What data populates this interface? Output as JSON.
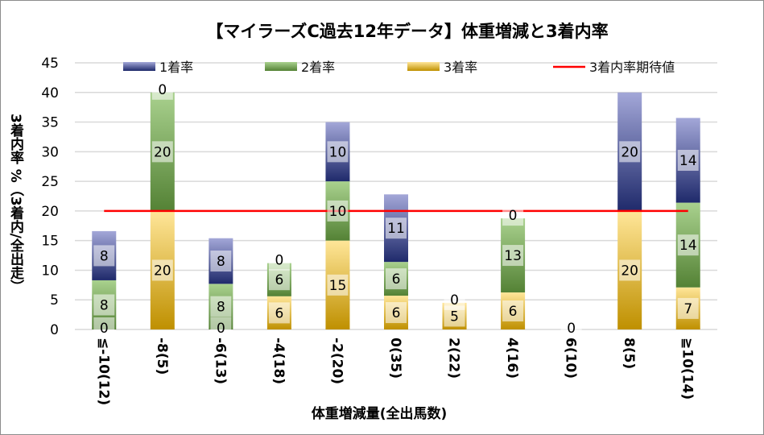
{
  "chart_data": {
    "type": "bar",
    "stacked": true,
    "title": "【マイラーズC過去12年データ】体重増減と3着内率",
    "xlabel": "体重増減量(全出馬数)",
    "ylabel": "3着内率 %（3着内/全出走）",
    "ylim": [
      0,
      45
    ],
    "yticks": [
      0,
      5,
      10,
      15,
      20,
      25,
      30,
      35,
      40,
      45
    ],
    "grid": true,
    "legend_position": "top",
    "categories": [
      "≦-10(12)",
      "-8(5)",
      "-6(13)",
      "-4(18)",
      "-2(20)",
      "0(35)",
      "2(22)",
      "4(16)",
      "6(10)",
      "8(5)",
      "≧10(14)"
    ],
    "series": [
      {
        "name": "3着率",
        "color": "#bf9000",
        "light": "#ffe699",
        "values": [
          0,
          20,
          0,
          5.6,
          15,
          5.7,
          4.5,
          6.25,
          0,
          20,
          7.1
        ],
        "labels": [
          "0",
          "20",
          "0",
          "6",
          "15",
          "6",
          "5",
          "6",
          "0",
          "20",
          "7"
        ]
      },
      {
        "name": "2着率",
        "color": "#548235",
        "light": "#a9d18e",
        "values": [
          8.3,
          20,
          7.7,
          5.6,
          10,
          5.7,
          0,
          12.5,
          0,
          0,
          14.3
        ],
        "labels": [
          "8",
          "20",
          "8",
          "6",
          "10",
          "6",
          "0",
          "13",
          "0",
          "0",
          "14"
        ]
      },
      {
        "name": "1着率",
        "color": "#1f2a6b",
        "light": "#a3a7d8",
        "values": [
          8.3,
          0,
          7.7,
          0,
          10,
          11.4,
          0,
          0,
          0,
          20,
          14.3
        ],
        "labels": [
          "8",
          "0",
          "8",
          "0",
          "10",
          "11",
          "0",
          "0",
          "0",
          "20",
          "14"
        ]
      }
    ],
    "reference_line": {
      "name": "3着内率期待値",
      "value": 20,
      "color": "#ff0000"
    },
    "legend_order": [
      "1着率",
      "2着率",
      "3着率",
      "3着内率期待値"
    ]
  }
}
